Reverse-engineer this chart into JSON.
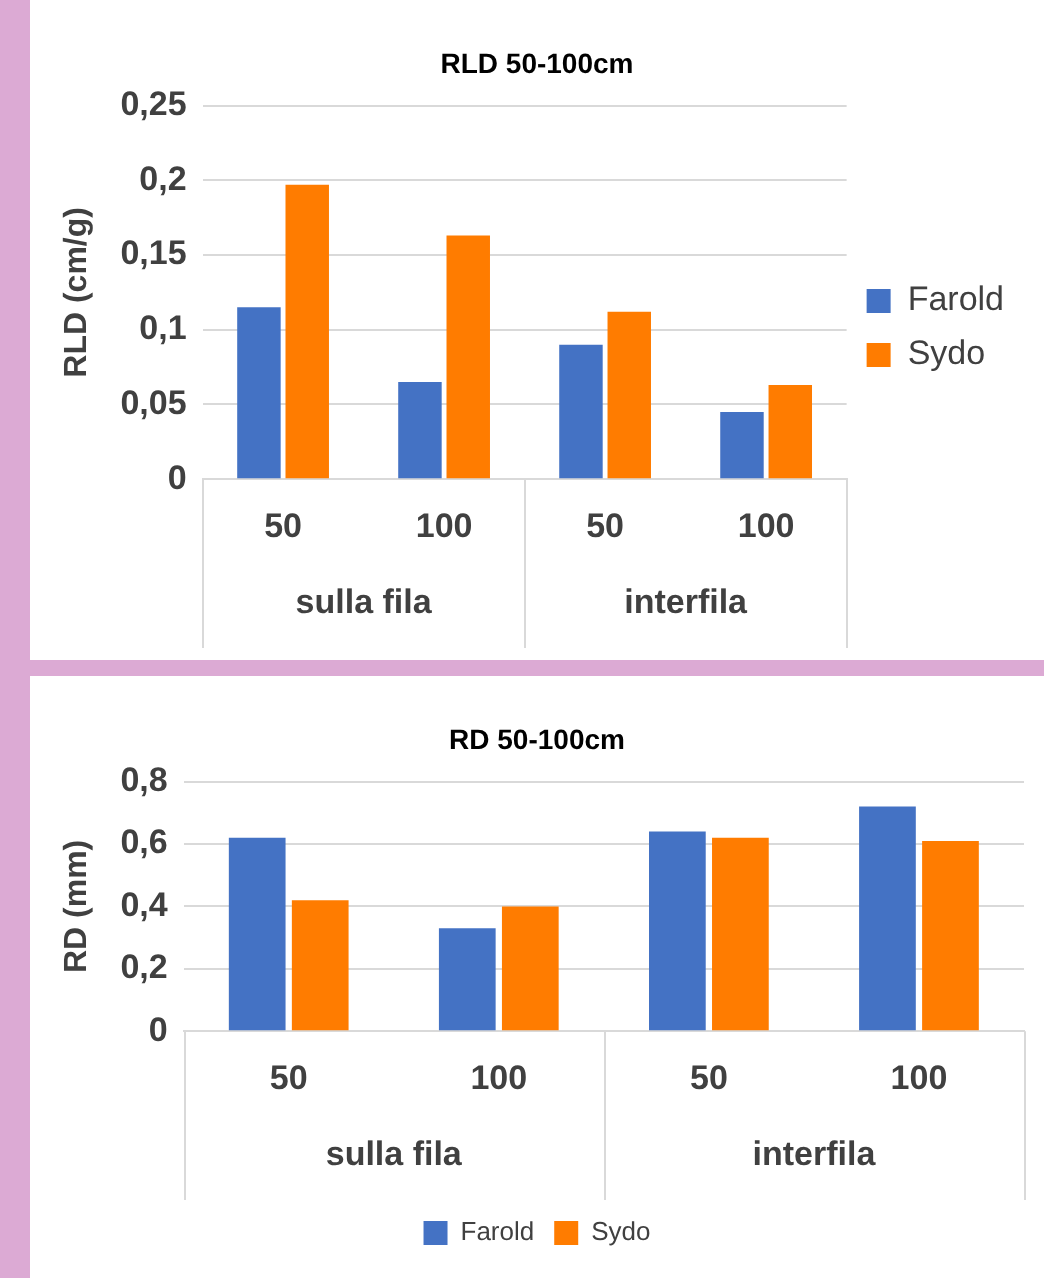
{
  "chart_data": [
    {
      "type": "bar",
      "title": "RLD 50-100cm",
      "ylabel": "RLD (cm/g)",
      "categories": [
        "50",
        "100",
        "50",
        "100"
      ],
      "series": [
        {
          "name": "Farold",
          "color": "#4472c4",
          "values": [
            0.115,
            0.065,
            0.09,
            0.045
          ]
        },
        {
          "name": "Sydo",
          "color": "#ff7c00",
          "values": [
            0.197,
            0.163,
            0.112,
            0.063
          ]
        }
      ],
      "ylim": [
        0,
        0.25
      ],
      "yticks": [
        0,
        {
          "value": 0.05,
          "label": "0,05"
        },
        {
          "value": 0.1,
          "label": "0,1"
        },
        {
          "value": 0.15,
          "label": "0,15"
        },
        {
          "value": 0.2,
          "label": "0,2"
        },
        {
          "value": 0.25,
          "label": "0,25"
        }
      ],
      "grid": "y",
      "legend": "right",
      "annotations": [
        "sulla fila",
        "interfila"
      ]
    },
    {
      "type": "bar",
      "title": "RD 50-100cm",
      "ylabel": "RD (mm)",
      "categories": [
        "50",
        "100",
        "50",
        "100"
      ],
      "series": [
        {
          "name": "Farold",
          "color": "#4472c4",
          "values": [
            0.62,
            0.33,
            0.64,
            0.72
          ]
        },
        {
          "name": "Sydo",
          "color": "#ff7c00",
          "values": [
            0.42,
            0.4,
            0.62,
            0.61
          ]
        }
      ],
      "ylim": [
        0,
        0.8
      ],
      "yticks": [
        0,
        {
          "value": 0.2,
          "label": "0,2"
        },
        {
          "value": 0.4,
          "label": "0,4"
        },
        {
          "value": 0.6,
          "label": "0,6"
        },
        {
          "value": 0.8,
          "label": "0,8"
        }
      ],
      "grid": "y",
      "legend": "bottom",
      "annotations": [
        "sulla fila",
        "interfila"
      ]
    }
  ]
}
